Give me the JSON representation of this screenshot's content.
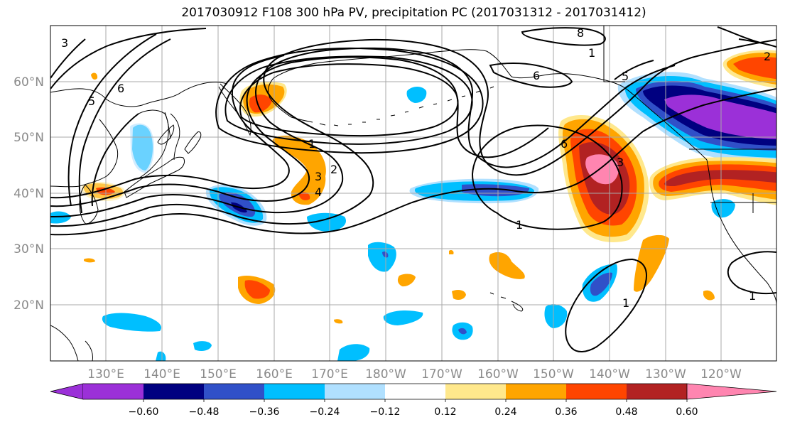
{
  "title": "2017030912 F108 300 hPa PV, precipitation PC (2017031312 - 2017031412)",
  "lat_labels": [
    "60°N",
    "50°N",
    "40°N",
    "30°N",
    "20°N"
  ],
  "lon_labels": [
    "130°E",
    "140°E",
    "150°E",
    "160°E",
    "170°E",
    "180°W",
    "170°W",
    "160°W",
    "150°W",
    "140°W",
    "130°W",
    "120°W"
  ],
  "contour_labels": [
    "3",
    "6",
    "5",
    "8",
    "1",
    "5",
    "6",
    "1",
    "2",
    "3",
    "4",
    "6",
    "3",
    "1",
    "1",
    "2",
    "1"
  ],
  "colorbar": {
    "ticks": [
      "−0.60",
      "−0.48",
      "−0.36",
      "−0.24",
      "−0.12",
      "0.12",
      "0.24",
      "0.36",
      "0.48",
      "0.60"
    ],
    "colors": [
      "#9b30d8",
      "#000080",
      "#3050c8",
      "#00bfff",
      "#b0e0ff",
      "#ffffff",
      "#ffe88c",
      "#ffa500",
      "#ff4500",
      "#b22222",
      "#ff85b0"
    ]
  },
  "fill_colors": {
    "purple": "#9b30d8",
    "navy": "#000080",
    "blue": "#3050c8",
    "cyan": "#00bfff",
    "light_cyan": "#b0e0ff",
    "yellow": "#ffe88c",
    "orange": "#ffa500",
    "red_orange": "#ff4500",
    "dark_red": "#b22222",
    "pink": "#ff85b0"
  }
}
